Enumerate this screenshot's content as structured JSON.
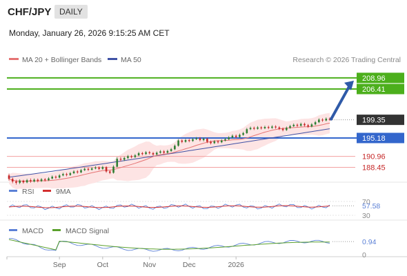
{
  "header": {
    "symbol": "CHF/JPY",
    "timeframe": "DAILY",
    "datetime": "Monday, January 26, 2026 9:15:25 AM CET"
  },
  "legend": {
    "ma20": "MA 20 + Bollinger Bands",
    "ma50": "MA 50",
    "source": "Research © 2026 Trading Central",
    "rsi": "RSI",
    "rsi_ma": "9MA",
    "macd": "MACD",
    "macd_signal": "MACD Signal"
  },
  "colors": {
    "up": "#2e7d32",
    "down": "#c62828",
    "ma20": "#e57373",
    "band": "#fde4e4",
    "ma50": "#3f51a5",
    "target": "#4caf1c",
    "support": "#f2a0a0",
    "pivot": "#3366cc",
    "price_box": "#333333",
    "arrow": "#2f5aa8",
    "rsi_line": "#5b80d6",
    "rsi_ma": "#d32f2f",
    "macd": "#5b80d6",
    "macd_signal": "#5aa02c"
  },
  "chart_data": [
    {
      "type": "candlestick",
      "title": "CHF/JPY",
      "x_months": [
        "Sep",
        "Oct",
        "Nov",
        "Dec",
        "2026"
      ],
      "price_range": [
        186,
        211
      ],
      "candles": [
        [
          186.6,
          185.8,
          187.0,
          185.4
        ],
        [
          185.8,
          185.2,
          186.1,
          184.8
        ],
        [
          185.2,
          184.9,
          185.6,
          184.5
        ],
        [
          184.9,
          185.4,
          185.7,
          184.6
        ],
        [
          185.4,
          185.0,
          185.6,
          184.7
        ],
        [
          185.0,
          185.5,
          185.8,
          184.8
        ],
        [
          185.5,
          185.2,
          185.9,
          184.9
        ],
        [
          185.2,
          185.6,
          185.9,
          185.0
        ],
        [
          185.6,
          185.3,
          185.9,
          185.0
        ],
        [
          185.3,
          185.7,
          186.0,
          185.1
        ],
        [
          185.7,
          185.5,
          186.0,
          185.2
        ],
        [
          185.5,
          185.9,
          186.2,
          185.3
        ],
        [
          185.9,
          186.3,
          186.6,
          185.7
        ],
        [
          186.3,
          186.1,
          186.6,
          185.8
        ],
        [
          186.1,
          186.6,
          186.9,
          185.9
        ],
        [
          186.6,
          186.9,
          187.2,
          186.4
        ],
        [
          186.9,
          186.7,
          187.2,
          186.4
        ],
        [
          186.7,
          187.1,
          187.4,
          186.5
        ],
        [
          187.1,
          187.5,
          187.8,
          186.9
        ],
        [
          187.5,
          187.3,
          187.8,
          187.0
        ],
        [
          187.3,
          187.8,
          188.1,
          187.1
        ],
        [
          187.8,
          188.1,
          188.4,
          187.6
        ],
        [
          188.1,
          187.9,
          188.4,
          187.6
        ],
        [
          187.9,
          188.2,
          188.5,
          187.7
        ],
        [
          188.2,
          188.4,
          188.7,
          188.0
        ],
        [
          188.4,
          188.1,
          188.7,
          187.8
        ],
        [
          188.1,
          188.5,
          188.8,
          187.9
        ],
        [
          188.5,
          187.5,
          188.7,
          187.2
        ],
        [
          187.5,
          187.2,
          187.8,
          186.9
        ],
        [
          187.2,
          188.6,
          188.9,
          187.0
        ],
        [
          188.6,
          190.4,
          190.8,
          188.4
        ],
        [
          190.4,
          190.2,
          190.8,
          189.8
        ],
        [
          190.2,
          190.6,
          190.9,
          189.9
        ],
        [
          190.6,
          191.0,
          191.3,
          190.3
        ],
        [
          191.0,
          190.8,
          191.3,
          190.5
        ],
        [
          190.8,
          191.2,
          191.5,
          190.6
        ],
        [
          191.2,
          191.7,
          192.0,
          191.0
        ],
        [
          191.7,
          191.5,
          192.0,
          191.2
        ],
        [
          191.5,
          191.9,
          192.2,
          191.3
        ],
        [
          191.9,
          191.7,
          192.2,
          191.4
        ],
        [
          191.7,
          191.4,
          192.0,
          191.1
        ],
        [
          191.4,
          191.8,
          192.1,
          191.2
        ],
        [
          191.8,
          192.1,
          192.4,
          191.6
        ],
        [
          192.1,
          191.8,
          192.4,
          191.5
        ],
        [
          191.8,
          192.2,
          192.5,
          191.6
        ],
        [
          192.2,
          192.6,
          192.9,
          192.0
        ],
        [
          192.6,
          193.4,
          193.7,
          192.4
        ],
        [
          193.4,
          194.6,
          194.9,
          193.2
        ],
        [
          194.6,
          194.3,
          194.9,
          194.0
        ],
        [
          194.3,
          194.7,
          195.0,
          194.1
        ],
        [
          194.7,
          194.5,
          195.0,
          194.2
        ],
        [
          194.5,
          194.9,
          195.2,
          194.3
        ],
        [
          194.9,
          195.1,
          195.4,
          194.7
        ],
        [
          195.1,
          194.7,
          195.4,
          194.4
        ],
        [
          194.7,
          195.0,
          195.3,
          194.4
        ],
        [
          195.0,
          194.3,
          195.2,
          194.0
        ],
        [
          194.3,
          194.0,
          194.6,
          193.7
        ],
        [
          194.0,
          194.4,
          194.7,
          193.8
        ],
        [
          194.4,
          194.2,
          194.7,
          193.9
        ],
        [
          194.2,
          194.6,
          194.9,
          194.0
        ],
        [
          194.6,
          194.9,
          195.2,
          194.4
        ],
        [
          194.9,
          195.3,
          195.6,
          194.7
        ],
        [
          195.3,
          195.7,
          196.0,
          195.1
        ],
        [
          195.7,
          195.4,
          196.0,
          195.1
        ],
        [
          195.4,
          195.9,
          196.2,
          195.2
        ],
        [
          195.9,
          196.3,
          196.6,
          195.7
        ],
        [
          196.3,
          197.2,
          197.5,
          196.1
        ],
        [
          197.2,
          197.5,
          197.8,
          197.0
        ],
        [
          197.5,
          197.3,
          197.8,
          197.0
        ],
        [
          197.3,
          197.6,
          197.9,
          197.1
        ],
        [
          197.6,
          197.4,
          197.9,
          197.1
        ],
        [
          197.4,
          197.7,
          198.0,
          197.2
        ],
        [
          197.7,
          197.5,
          198.0,
          197.2
        ],
        [
          197.5,
          197.8,
          198.1,
          197.3
        ],
        [
          197.8,
          197.6,
          198.1,
          197.3
        ],
        [
          197.6,
          197.3,
          197.9,
          197.0
        ],
        [
          197.3,
          197.0,
          197.6,
          196.7
        ],
        [
          197.0,
          197.5,
          197.8,
          196.8
        ],
        [
          197.5,
          197.9,
          198.2,
          197.3
        ],
        [
          197.9,
          198.2,
          198.5,
          197.7
        ],
        [
          198.2,
          198.0,
          198.5,
          197.7
        ],
        [
          198.0,
          198.4,
          198.7,
          197.8
        ],
        [
          198.4,
          198.1,
          198.7,
          197.8
        ],
        [
          198.1,
          197.8,
          198.4,
          197.5
        ],
        [
          197.8,
          198.3,
          198.6,
          197.6
        ],
        [
          198.3,
          198.8,
          199.1,
          198.1
        ],
        [
          198.8,
          199.4,
          199.7,
          198.6
        ],
        [
          199.4,
          199.2,
          199.7,
          198.9
        ],
        [
          199.2,
          199.6,
          199.9,
          199.0
        ],
        [
          199.6,
          199.35,
          199.9,
          199.1
        ]
      ],
      "ma20_last": 198.0,
      "ma50_last": 197.3,
      "levels": [
        {
          "value": 208.96,
          "label": "208.96",
          "kind": "target"
        },
        {
          "value": 206.41,
          "label": "206.41",
          "kind": "target"
        },
        {
          "value": 199.35,
          "label": "199.35",
          "kind": "price"
        },
        {
          "value": 195.18,
          "label": "195.18",
          "kind": "pivot"
        },
        {
          "value": 190.96,
          "label": "190.96",
          "kind": "support"
        },
        {
          "value": 188.45,
          "label": "188.45",
          "kind": "support"
        }
      ]
    },
    {
      "type": "line",
      "title": "RSI",
      "ylim": [
        30,
        70
      ],
      "tick_labels": [
        "70",
        "30"
      ],
      "series": [
        {
          "name": "RSI",
          "last": 57.58
        },
        {
          "name": "9MA"
        }
      ],
      "value_label": "57.58"
    },
    {
      "type": "line",
      "title": "MACD",
      "ylim": [
        -2.5,
        2.5
      ],
      "tick_labels": [
        "0"
      ],
      "series": [
        {
          "name": "MACD",
          "last": 0.94
        },
        {
          "name": "MACD Signal"
        }
      ],
      "value_label": "0.94"
    }
  ]
}
